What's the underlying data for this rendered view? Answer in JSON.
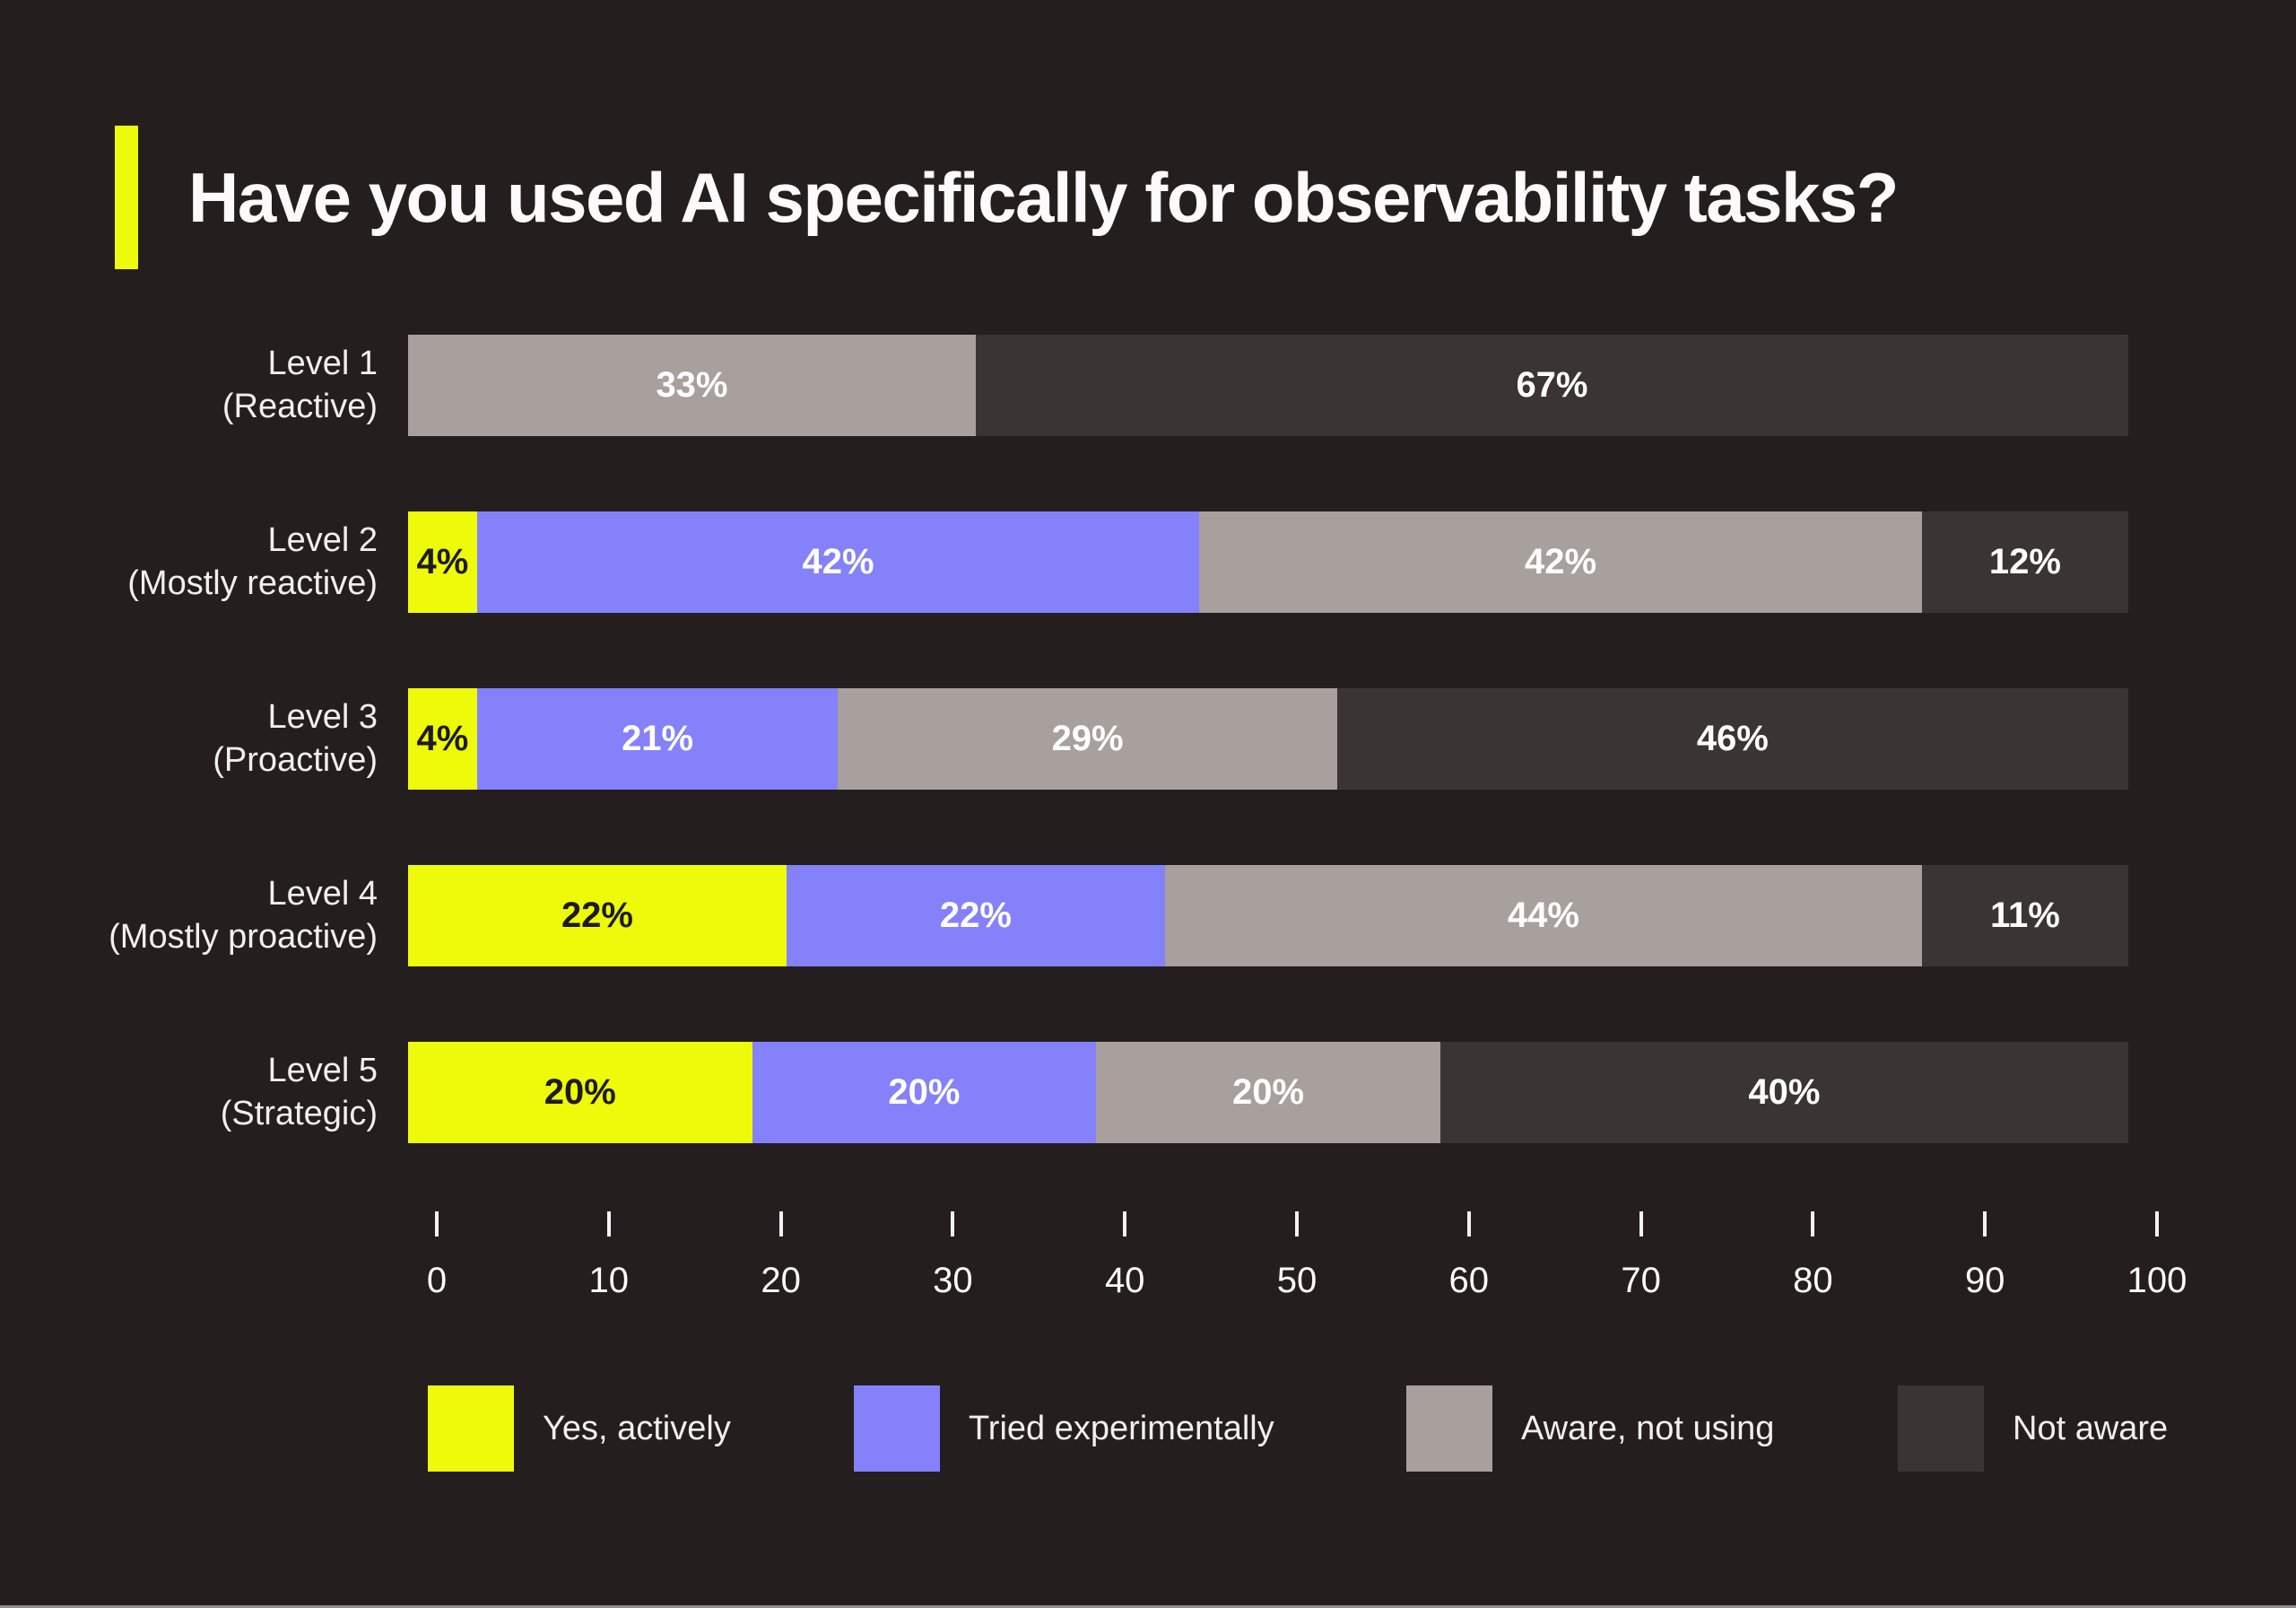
{
  "title": "Have you used AI specifically for observability tasks?",
  "colors": {
    "background": "#241E1E",
    "accent_yellow": "#EDFB0A",
    "purple": "#8481FB",
    "gray": "#A8A09C",
    "dark_gray": "#3A3434",
    "white_text": "#FFFFFF",
    "dark_text": "#1F1B1B",
    "bottom_edge": "#8F8F8F"
  },
  "chart_data": {
    "type": "bar",
    "orientation": "horizontal",
    "stacked": true,
    "title": "Have you used AI specifically for observability tasks?",
    "xlim": [
      0,
      100
    ],
    "tick_labels": [
      "0",
      "10",
      "20",
      "30",
      "40",
      "50",
      "60",
      "70",
      "80",
      "90",
      "100"
    ],
    "grid": false,
    "legend_position": "bottom",
    "categories": [
      {
        "line1": "Level 1",
        "line2": "(Reactive)"
      },
      {
        "line1": "Level 2",
        "line2": "(Mostly reactive)"
      },
      {
        "line1": "Level 3",
        "line2": "(Proactive)"
      },
      {
        "line1": "Level 4",
        "line2": "(Mostly proactive)"
      },
      {
        "line1": "Level 5",
        "line2": "(Strategic)"
      }
    ],
    "series": [
      {
        "name": "Yes, actively",
        "color": "#EDFB0A",
        "label_color": "#1F1B1B",
        "values": [
          0,
          4,
          4,
          22,
          20
        ]
      },
      {
        "name": "Tried experimentally",
        "color": "#8481FB",
        "label_color": "#FFFFFF",
        "values": [
          0,
          42,
          21,
          22,
          20
        ]
      },
      {
        "name": "Aware, not using",
        "color": "#A8A09C",
        "label_color": "#FFFFFF",
        "values": [
          33,
          42,
          29,
          44,
          20
        ]
      },
      {
        "name": "Not aware",
        "color": "#3A3434",
        "label_color": "#FFFFFF",
        "values": [
          67,
          12,
          46,
          11,
          40
        ]
      }
    ],
    "value_suffix": "%"
  },
  "legend": {
    "items": [
      "Yes, actively",
      "Tried experimentally",
      "Aware, not using",
      "Not aware"
    ],
    "item_x": [
      477,
      952,
      1568,
      2116
    ]
  }
}
